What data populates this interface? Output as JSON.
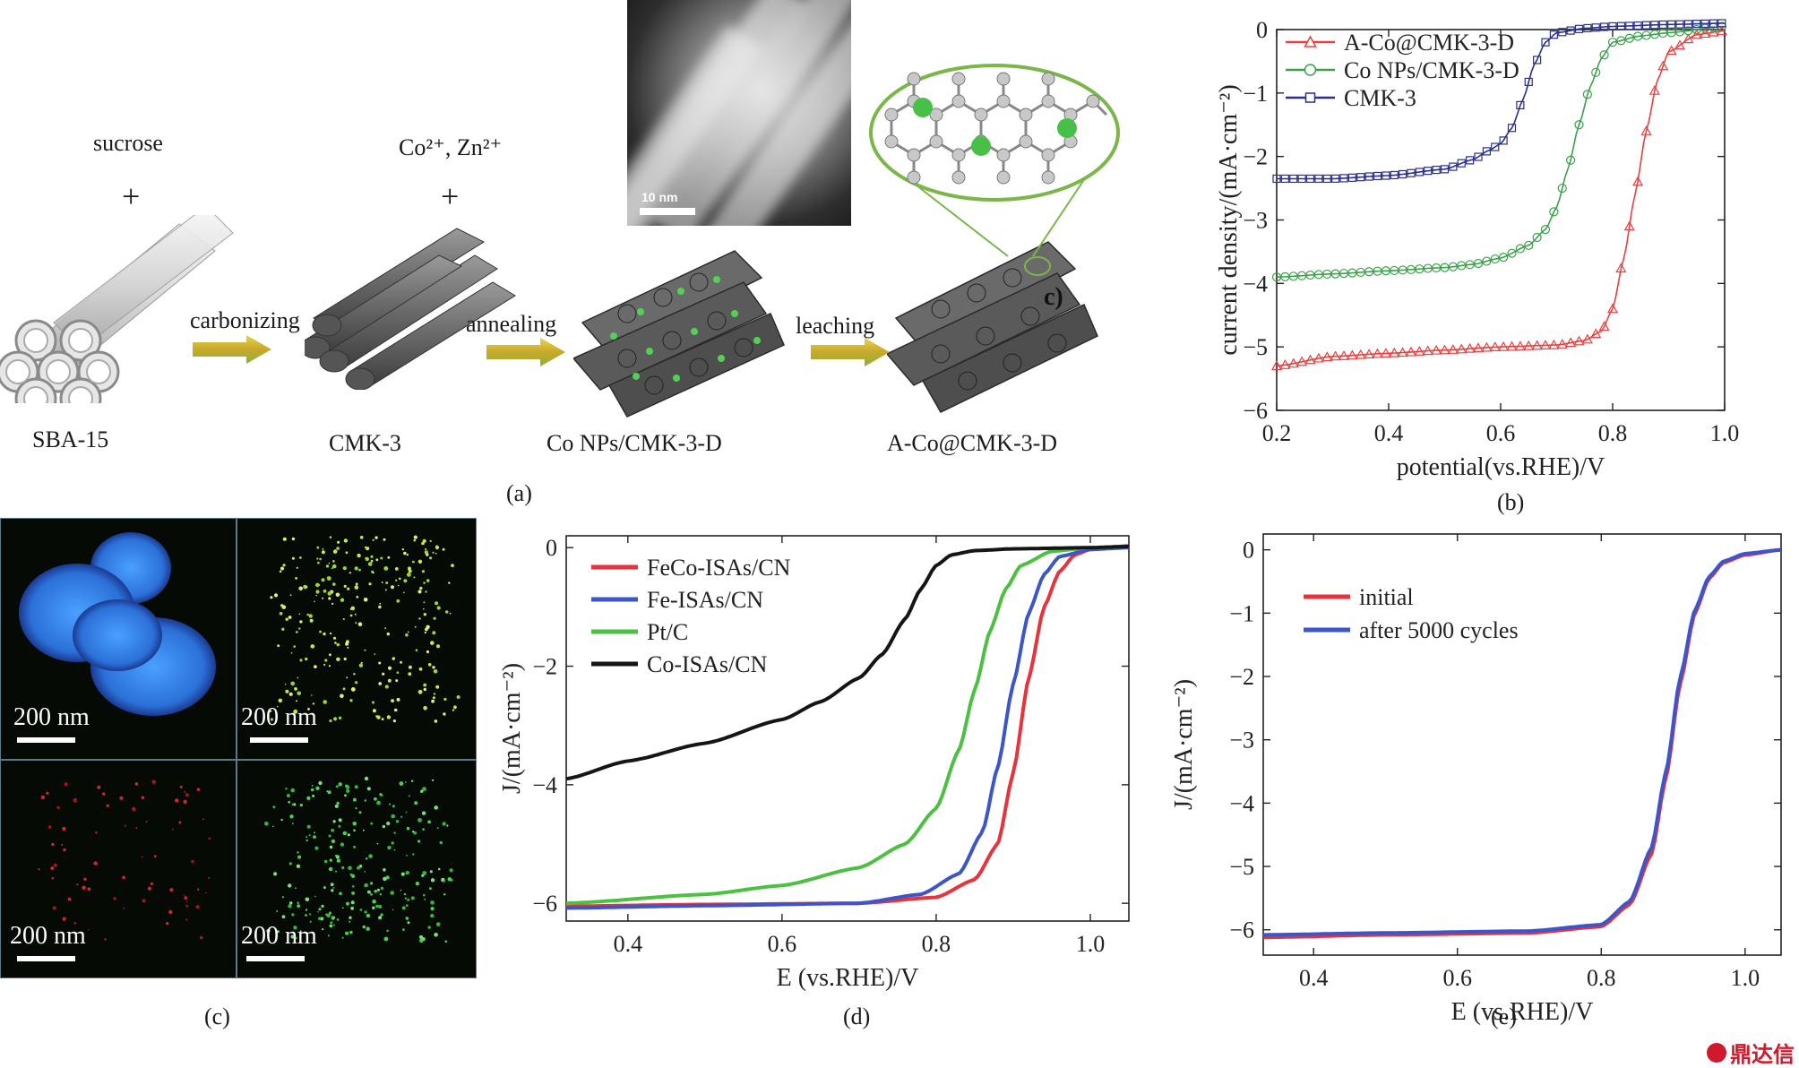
{
  "panel_a": {
    "caption": "(a)",
    "labels": {
      "sba15": "SBA-15",
      "cmk3": "CMK-3",
      "conps": "Co NPs/CMK-3-D",
      "aco": "A-Co@CMK-3-D",
      "sucrose": "sucrose",
      "plus1": "+",
      "ions": "Co²⁺, Zn²⁺",
      "plus2": "+",
      "carbonizing": "carbonizing",
      "annealing": "annealing",
      "leaching": "leaching",
      "tem_scale": "10 nm"
    }
  },
  "panel_b": {
    "caption": "(b)",
    "ylabel": "current density/(mA·cm⁻²)",
    "xlabel": "potential(vs.RHE)/V",
    "xticks": [
      "0.2",
      "0.4",
      "0.6",
      "0.8",
      "1.0"
    ],
    "yticks": [
      "0",
      "−1",
      "−2",
      "−3",
      "−4",
      "−5",
      "−6"
    ],
    "legend": [
      "A-Co@CMK-3-D",
      "Co NPs/CMK-3-D",
      "CMK-3"
    ]
  },
  "panel_c": {
    "caption": "(c)",
    "scale_labels": [
      "200 nm",
      "200 nm",
      "200 nm",
      "200 nm"
    ]
  },
  "panel_d": {
    "caption": "(d)",
    "ylabel": "J/(mA·cm⁻²)",
    "xlabel": "E (vs.RHE)/V",
    "xticks": [
      "0.4",
      "0.6",
      "0.8",
      "1.0"
    ],
    "yticks": [
      "0",
      "−2",
      "−4",
      "−6"
    ],
    "legend": [
      "FeCo-ISAs/CN",
      "Fe-ISAs/CN",
      "Pt/C",
      "Co-ISAs/CN"
    ]
  },
  "panel_e": {
    "caption": "(e)",
    "ylabel": "J/(mA·cm⁻²)",
    "xlabel": "E (vs.RHE)/V",
    "xticks": [
      "0.4",
      "0.6",
      "0.8",
      "1.0"
    ],
    "yticks": [
      "0",
      "−1",
      "−2",
      "−3",
      "−4",
      "−5",
      "−6"
    ],
    "legend": [
      "initial",
      "after 5000 cycles"
    ]
  },
  "watermark": "鼎达信",
  "chart_data": [
    {
      "type": "line",
      "id": "b",
      "xlabel": "potential(vs.RHE)/V",
      "ylabel": "current density/(mA·cm⁻²)",
      "xlim": [
        0.2,
        1.0
      ],
      "ylim": [
        -6,
        0
      ],
      "series": [
        {
          "name": "A-Co@CMK-3-D",
          "color": "#e84040",
          "marker": "triangle",
          "x": [
            0.2,
            0.3,
            0.4,
            0.5,
            0.6,
            0.7,
            0.75,
            0.78,
            0.8,
            0.82,
            0.84,
            0.86,
            0.88,
            0.9,
            0.95,
            1.0
          ],
          "y": [
            -5.3,
            -5.15,
            -5.1,
            -5.05,
            -5.0,
            -4.97,
            -4.9,
            -4.75,
            -4.4,
            -3.6,
            -2.6,
            -1.6,
            -0.8,
            -0.35,
            -0.08,
            -0.02
          ]
        },
        {
          "name": "Co NPs/CMK-3-D",
          "color": "#3aa14a",
          "marker": "circle",
          "x": [
            0.2,
            0.3,
            0.4,
            0.5,
            0.55,
            0.6,
            0.65,
            0.68,
            0.7,
            0.72,
            0.74,
            0.76,
            0.78,
            0.8,
            0.85,
            0.9,
            1.0
          ],
          "y": [
            -3.9,
            -3.85,
            -3.8,
            -3.75,
            -3.7,
            -3.6,
            -3.4,
            -3.15,
            -2.8,
            -2.2,
            -1.5,
            -0.9,
            -0.45,
            -0.2,
            -0.1,
            -0.05,
            0.05
          ]
        },
        {
          "name": "CMK-3",
          "color": "#2a2f8c",
          "marker": "square",
          "x": [
            0.2,
            0.3,
            0.4,
            0.5,
            0.55,
            0.58,
            0.6,
            0.62,
            0.64,
            0.66,
            0.68,
            0.7,
            0.75,
            0.8,
            0.9,
            1.0
          ],
          "y": [
            -2.35,
            -2.35,
            -2.3,
            -2.2,
            -2.05,
            -1.9,
            -1.8,
            -1.55,
            -1.1,
            -0.55,
            -0.2,
            -0.05,
            0.02,
            0.05,
            0.08,
            0.1
          ]
        }
      ]
    },
    {
      "type": "line",
      "id": "d",
      "xlabel": "E (vs.RHE)/V",
      "ylabel": "J/(mA·cm⁻²)",
      "xlim": [
        0.32,
        1.05
      ],
      "ylim": [
        -6.3,
        0.2
      ],
      "series": [
        {
          "name": "FeCo-ISAs/CN",
          "color": "#e8323c",
          "x": [
            0.32,
            0.5,
            0.7,
            0.8,
            0.85,
            0.88,
            0.9,
            0.92,
            0.94,
            0.96,
            0.98,
            1.0,
            1.05
          ],
          "y": [
            -6.05,
            -6.02,
            -6.0,
            -5.9,
            -5.6,
            -5.0,
            -3.8,
            -2.2,
            -1.0,
            -0.4,
            -0.12,
            -0.03,
            0.03
          ]
        },
        {
          "name": "Fe-ISAs/CN",
          "color": "#3c55c8",
          "x": [
            0.32,
            0.5,
            0.7,
            0.78,
            0.83,
            0.86,
            0.88,
            0.9,
            0.92,
            0.94,
            0.96,
            1.0,
            1.05
          ],
          "y": [
            -6.08,
            -6.04,
            -6.0,
            -5.85,
            -5.5,
            -4.8,
            -3.7,
            -2.3,
            -1.1,
            -0.45,
            -0.15,
            -0.03,
            0.0
          ]
        },
        {
          "name": "Pt/C",
          "color": "#4cc040",
          "x": [
            0.32,
            0.5,
            0.6,
            0.7,
            0.76,
            0.8,
            0.83,
            0.85,
            0.87,
            0.89,
            0.91,
            0.95,
            1.0,
            1.05
          ],
          "y": [
            -6.0,
            -5.85,
            -5.7,
            -5.4,
            -5.0,
            -4.4,
            -3.4,
            -2.4,
            -1.4,
            -0.7,
            -0.3,
            -0.06,
            0.0,
            0.02
          ]
        },
        {
          "name": "Co-ISAs/CN",
          "color": "#151515",
          "x": [
            0.32,
            0.4,
            0.5,
            0.6,
            0.65,
            0.7,
            0.73,
            0.76,
            0.78,
            0.8,
            0.82,
            0.85,
            0.9,
            1.0,
            1.05
          ],
          "y": [
            -3.9,
            -3.6,
            -3.3,
            -2.9,
            -2.6,
            -2.2,
            -1.8,
            -1.2,
            -0.7,
            -0.3,
            -0.12,
            -0.05,
            -0.02,
            0.0,
            0.02
          ]
        }
      ]
    },
    {
      "type": "line",
      "id": "e",
      "xlabel": "E (vs.RHE)/V",
      "ylabel": "J/(mA·cm⁻²)",
      "xlim": [
        0.33,
        1.05
      ],
      "ylim": [
        -6.4,
        0.25
      ],
      "series": [
        {
          "name": "initial",
          "color": "#e8323c",
          "x": [
            0.33,
            0.5,
            0.7,
            0.8,
            0.84,
            0.87,
            0.89,
            0.91,
            0.93,
            0.95,
            0.97,
            1.0,
            1.05
          ],
          "y": [
            -6.12,
            -6.08,
            -6.05,
            -5.95,
            -5.6,
            -4.8,
            -3.6,
            -2.1,
            -1.0,
            -0.45,
            -0.2,
            -0.08,
            0.0
          ]
        },
        {
          "name": "after 5000 cycles",
          "color": "#3c55c8",
          "x": [
            0.33,
            0.5,
            0.7,
            0.8,
            0.84,
            0.87,
            0.89,
            0.91,
            0.93,
            0.95,
            0.97,
            1.0,
            1.05
          ],
          "y": [
            -6.08,
            -6.05,
            -6.02,
            -5.92,
            -5.55,
            -4.7,
            -3.5,
            -2.0,
            -0.95,
            -0.42,
            -0.18,
            -0.06,
            0.0
          ]
        }
      ]
    }
  ]
}
